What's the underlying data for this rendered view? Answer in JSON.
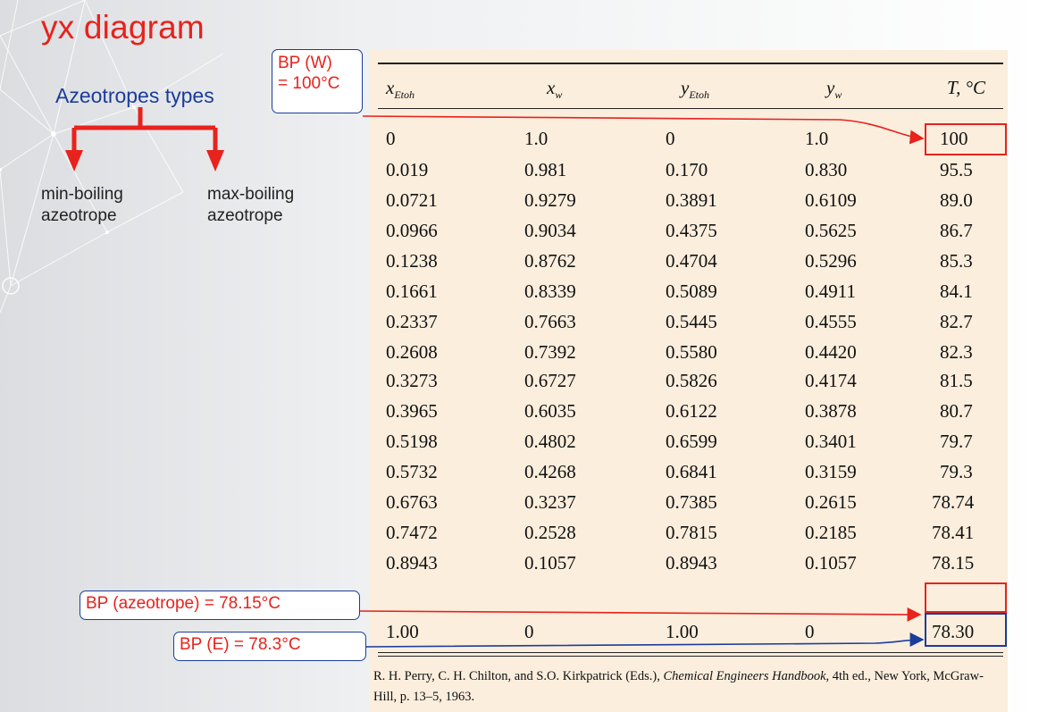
{
  "slide": {
    "title": "yx diagram",
    "types_label": "Azeotropes types",
    "min_boiling": [
      "min-boiling",
      "azeotrope"
    ],
    "max_boiling": [
      "max-boiling",
      "azeotrope"
    ]
  },
  "callouts": {
    "bp_water": [
      "BP (W)",
      "= 100°C"
    ],
    "bp_azeotrope": "BP (azeotrope) = 78.15°C",
    "bp_ethanol": "BP (E) = 78.3°C"
  },
  "table": {
    "headers": [
      {
        "base": "x",
        "sub": "Etoh"
      },
      {
        "base": "x",
        "sub": "w"
      },
      {
        "base": "y",
        "sub": "Etoh"
      },
      {
        "base": "y",
        "sub": "w"
      },
      {
        "base": "T, °C",
        "sub": ""
      }
    ],
    "rows": [
      [
        "0",
        "1.0",
        "0",
        "1.0",
        "100"
      ],
      [
        "0.019",
        "0.981",
        "0.170",
        "0.830",
        "95.5"
      ],
      [
        "0.0721",
        "0.9279",
        "0.3891",
        "0.6109",
        "89.0"
      ],
      [
        "0.0966",
        "0.9034",
        "0.4375",
        "0.5625",
        "86.7"
      ],
      [
        "0.1238",
        "0.8762",
        "0.4704",
        "0.5296",
        "85.3"
      ],
      [
        "0.1661",
        "0.8339",
        "0.5089",
        "0.4911",
        "84.1"
      ],
      [
        "0.2337",
        "0.7663",
        "0.5445",
        "0.4555",
        "82.7"
      ],
      [
        "0.2608",
        "0.7392",
        "0.5580",
        "0.4420",
        "82.3"
      ],
      [
        "0.3273",
        "0.6727",
        "0.5826",
        "0.4174",
        "81.5"
      ],
      [
        "0.3965",
        "0.6035",
        "0.6122",
        "0.3878",
        "80.7"
      ],
      [
        "0.5198",
        "0.4802",
        "0.6599",
        "0.3401",
        "79.7"
      ],
      [
        "0.5732",
        "0.4268",
        "0.6841",
        "0.3159",
        "79.3"
      ],
      [
        "0.6763",
        "0.3237",
        "0.7385",
        "0.2615",
        "78.74"
      ],
      [
        "0.7472",
        "0.2528",
        "0.7815",
        "0.2185",
        "78.41"
      ],
      [
        "0.8943",
        "0.1057",
        "0.8943",
        "0.1057",
        "78.15"
      ],
      [
        "1.00",
        "0",
        "1.00",
        "0",
        "78.30"
      ]
    ],
    "citation": {
      "before": "R. H. Perry, C. H. Chilton, and S.O. Kirkpatrick (Eds.), ",
      "italic": "Chemical Engineers Handbook",
      "after": ", 4th ed., New York, McGraw-Hill, p. 13–5, 1963."
    }
  },
  "colors": {
    "accent_red": "#e8221c",
    "accent_blue": "#1b3c9a",
    "table_bg": "#fbeedd"
  }
}
